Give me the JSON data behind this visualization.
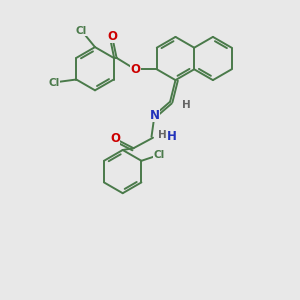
{
  "bg_color": "#e8e8e8",
  "bond_color": "#4a7a4a",
  "atom_colors": {
    "O": "#cc0000",
    "N": "#2233bb",
    "Cl": "#4a7a4a",
    "H": "#666666",
    "C": "#4a7a4a"
  },
  "line_width": 1.4,
  "font_size": 8.5,
  "font_size_small": 7.5
}
